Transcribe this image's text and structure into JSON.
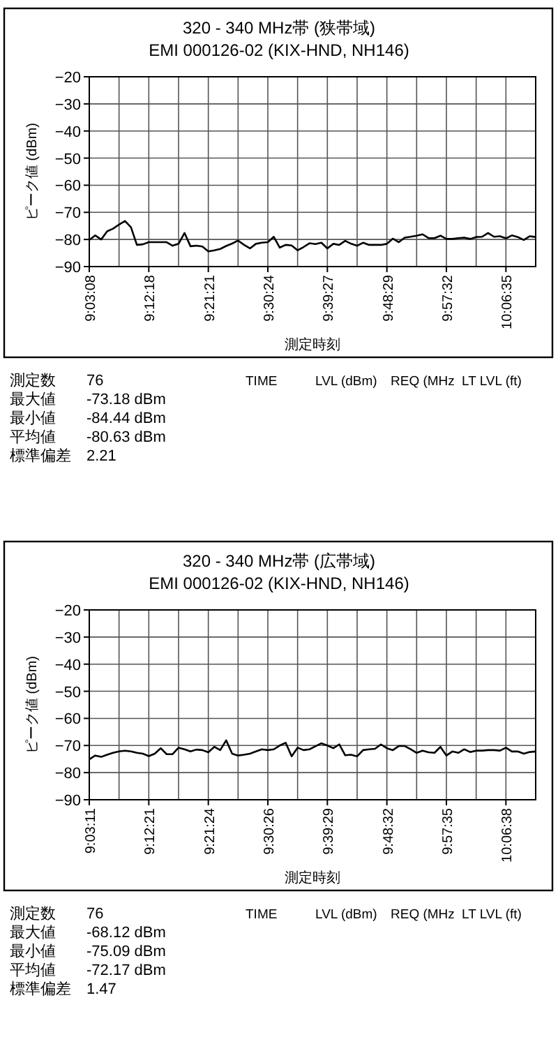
{
  "chart_data": [
    {
      "type": "line",
      "title": "320 - 340 MHz帯 (狭帯域)",
      "subtitle": "EMI 000126-02 (KIX-HND, NH146)",
      "xlabel": "測定時刻",
      "ylabel": "ピーク値 (dBm)",
      "categories": [
        "9:03:08",
        null,
        null,
        null,
        null,
        null,
        null,
        null,
        null,
        null,
        "9:12:18",
        null,
        null,
        null,
        null,
        null,
        null,
        null,
        null,
        null,
        "9:21:21",
        null,
        null,
        null,
        null,
        null,
        null,
        null,
        null,
        null,
        "9:30:24",
        null,
        null,
        null,
        null,
        null,
        null,
        null,
        null,
        null,
        "9:39:27",
        null,
        null,
        null,
        null,
        null,
        null,
        null,
        null,
        null,
        "9:48:29",
        null,
        null,
        null,
        null,
        null,
        null,
        null,
        null,
        null,
        "9:57:32",
        null,
        null,
        null,
        null,
        null,
        null,
        null,
        null,
        null,
        "10:06:35",
        null,
        null,
        null,
        null,
        null
      ],
      "series": [
        {
          "color": "#000000",
          "values": [
            -80.2,
            -78.5,
            -80,
            -77,
            -76,
            -74.5,
            -73.2,
            -75.5,
            -82,
            -81.8,
            -81,
            -81,
            -81,
            -81,
            -82.3,
            -81.6,
            -77.6,
            -82.5,
            -82.3,
            -82.6,
            -84.4,
            -84,
            -83.5,
            -82.4,
            -81.5,
            -80.4,
            -82,
            -83.3,
            -81.6,
            -81.2,
            -81,
            -79,
            -83,
            -82,
            -82.2,
            -84,
            -82.8,
            -81.4,
            -81.7,
            -81.2,
            -83.3,
            -81.6,
            -82,
            -80.5,
            -81.6,
            -82.3,
            -81.2,
            -82,
            -82,
            -82,
            -81.6,
            -79.7,
            -81,
            -79.3,
            -79,
            -78.6,
            -78.1,
            -79.5,
            -79.5,
            -78.6,
            -79.8,
            -79.8,
            -79.5,
            -79.3,
            -79.8,
            -79.1,
            -79,
            -77.6,
            -79,
            -78.8,
            -79.6,
            -78.5,
            -79.1,
            -80.2,
            -78.8,
            -79.1
          ]
        }
      ],
      "ylim": [
        -90,
        -20
      ],
      "yticks": [
        -20,
        -30,
        -40,
        -50,
        -60,
        -70,
        -80,
        -90
      ],
      "grid": true,
      "marker": "none",
      "line_style": "solid",
      "annotations": [
        "測定数",
        "76",
        "最大値",
        "-73.18  dBm",
        "最小値",
        "-84.44  dBm",
        "平均値",
        "-80.63  dBm",
        "標準偏差",
        "2.21",
        "TIME",
        "LVL (dBm)",
        "REQ (MHz",
        "LT LVL (ft)"
      ]
    },
    {
      "type": "line",
      "title": "320 - 340 MHz帯 (広帯域)",
      "subtitle": "EMI 000126-02 (KIX-HND, NH146)",
      "xlabel": "測定時刻",
      "ylabel": "ピーク値 (dBm)",
      "categories": [
        "9:03:11",
        null,
        null,
        null,
        null,
        null,
        null,
        null,
        null,
        null,
        "9:12:21",
        null,
        null,
        null,
        null,
        null,
        null,
        null,
        null,
        null,
        "9:21:24",
        null,
        null,
        null,
        null,
        null,
        null,
        null,
        null,
        null,
        "9:30:26",
        null,
        null,
        null,
        null,
        null,
        null,
        null,
        null,
        null,
        "9:39:29",
        null,
        null,
        null,
        null,
        null,
        null,
        null,
        null,
        null,
        "9:48:32",
        null,
        null,
        null,
        null,
        null,
        null,
        null,
        null,
        null,
        "9:57:35",
        null,
        null,
        null,
        null,
        null,
        null,
        null,
        null,
        null,
        "10:06:38",
        null,
        null,
        null,
        null,
        null
      ],
      "series": [
        {
          "color": "#000000",
          "values": [
            -75.1,
            -73.7,
            -74.2,
            -73.4,
            -72.7,
            -72.2,
            -71.9,
            -72.2,
            -72.7,
            -73,
            -73.9,
            -73,
            -71,
            -73.2,
            -73.2,
            -70.8,
            -71.4,
            -72.2,
            -71.5,
            -71.7,
            -72.5,
            -70.5,
            -71.7,
            -68.1,
            -73,
            -73.7,
            -73.4,
            -73,
            -72.2,
            -71.4,
            -71.7,
            -71.4,
            -70,
            -69,
            -74,
            -70.8,
            -71.7,
            -71.4,
            -70.3,
            -69.2,
            -70,
            -71,
            -69.6,
            -73.6,
            -73.4,
            -74,
            -71.7,
            -71.4,
            -71.2,
            -69.6,
            -71,
            -71.7,
            -70.2,
            -70.2,
            -71.4,
            -72.7,
            -71.9,
            -72.5,
            -72.7,
            -70.5,
            -73.7,
            -72.2,
            -72.7,
            -71.4,
            -72.4,
            -71.9,
            -71.9,
            -71.7,
            -71.7,
            -71.9,
            -70.8,
            -72.2,
            -72.2,
            -73,
            -72.4,
            -72.2
          ]
        }
      ],
      "ylim": [
        -90,
        -20
      ],
      "yticks": [
        -20,
        -30,
        -40,
        -50,
        -60,
        -70,
        -80,
        -90
      ],
      "grid": true,
      "marker": "none",
      "line_style": "solid",
      "annotations": [
        "測定数",
        "76",
        "最大値",
        "-68.12  dBm",
        "最小値",
        "-75.09  dBm",
        "平均値",
        "-72.17  dBm",
        "標準偏差",
        "1.47",
        "TIME",
        "LVL (dBm)",
        "REQ (MHz",
        "LT LVL (ft)"
      ]
    }
  ]
}
